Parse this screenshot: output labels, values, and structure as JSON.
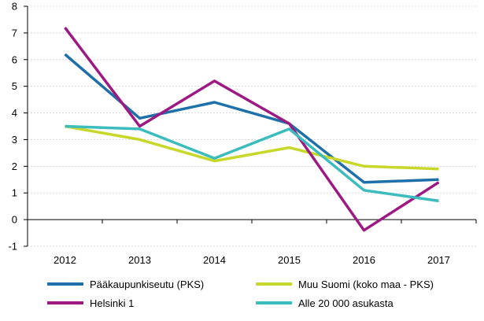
{
  "chart_data": {
    "type": "line",
    "title": "",
    "xlabel": "",
    "ylabel": "",
    "categories": [
      "2012",
      "2013",
      "2014",
      "2015",
      "2016",
      "2017"
    ],
    "ylim": [
      -1,
      8
    ],
    "yticks": [
      -1,
      0,
      1,
      2,
      3,
      4,
      5,
      6,
      7,
      8
    ],
    "grid": true,
    "legend_position": "bottom",
    "series": [
      {
        "name": "Pääkaupunkiseutu (PKS)",
        "color": "#1f6fa8",
        "values": [
          6.2,
          3.8,
          4.4,
          3.6,
          1.4,
          1.5
        ]
      },
      {
        "name": "Muu Suomi (koko maa - PKS)",
        "color": "#c8d82b",
        "values": [
          3.5,
          3.0,
          2.2,
          2.7,
          2.0,
          1.9
        ]
      },
      {
        "name": "Helsinki 1",
        "color": "#9c1a82",
        "values": [
          7.2,
          3.5,
          5.2,
          3.6,
          -0.4,
          1.4
        ]
      },
      {
        "name": "Alle 20 000 asukasta",
        "color": "#3cbcbc",
        "values": [
          3.5,
          3.4,
          2.3,
          3.4,
          1.1,
          0.7
        ]
      }
    ]
  }
}
